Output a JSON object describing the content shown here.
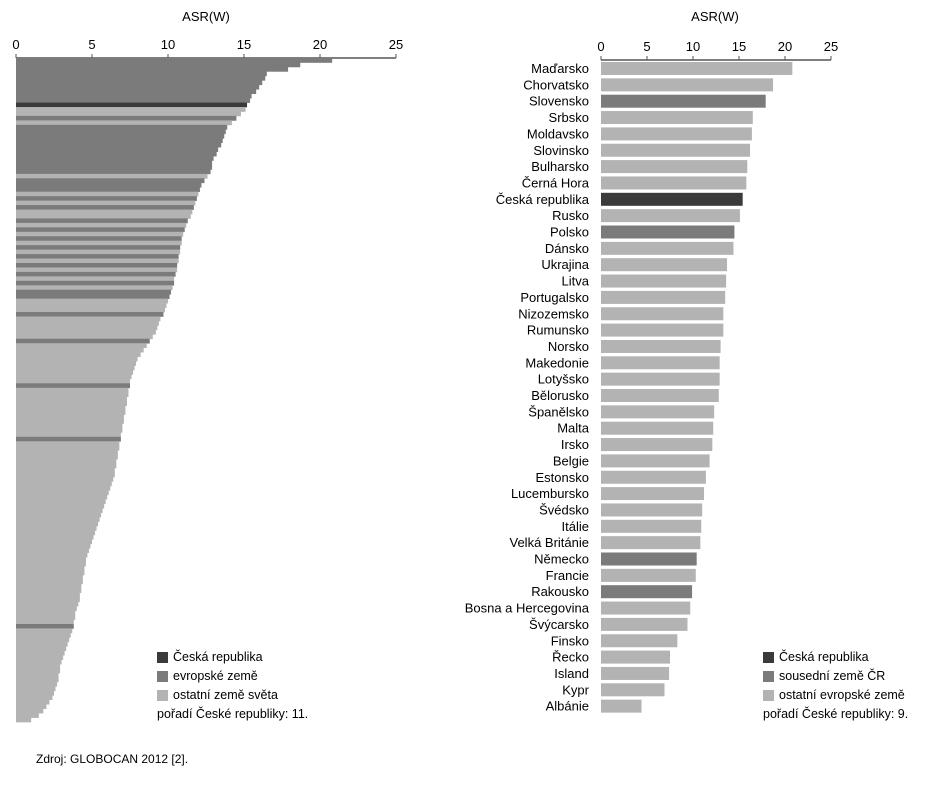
{
  "colors": {
    "cz": "#3a3a3a",
    "eu": "#7b7b7b",
    "other": "#b3b3b3",
    "axis": "#555555"
  },
  "chart_data": [
    {
      "type": "bar",
      "orientation": "horizontal",
      "xlabel": "ASR(W)",
      "xlim": [
        0,
        25
      ],
      "xticks": [
        0,
        5,
        10,
        15,
        20,
        25
      ],
      "values": [
        20.8,
        18.7,
        17.9,
        16.5,
        16.4,
        16.2,
        16.0,
        15.8,
        15.5,
        15.4,
        15.2,
        15.1,
        14.8,
        14.5,
        14.2,
        13.9,
        13.8,
        13.7,
        13.6,
        13.5,
        13.3,
        13.2,
        13.0,
        12.9,
        12.9,
        12.8,
        12.6,
        12.4,
        12.2,
        12.1,
        12.0,
        11.9,
        11.8,
        11.7,
        11.6,
        11.5,
        11.3,
        11.2,
        11.1,
        11.0,
        10.9,
        10.9,
        10.8,
        10.8,
        10.7,
        10.7,
        10.6,
        10.6,
        10.5,
        10.4,
        10.4,
        10.3,
        10.2,
        10.1,
        10.0,
        9.9,
        9.8,
        9.7,
        9.5,
        9.4,
        9.3,
        9.2,
        9.0,
        8.8,
        8.6,
        8.4,
        8.2,
        8.0,
        7.9,
        7.8,
        7.7,
        7.6,
        7.5,
        7.5,
        7.4,
        7.4,
        7.3,
        7.3,
        7.2,
        7.2,
        7.1,
        7.1,
        7.0,
        7.0,
        6.9,
        6.9,
        6.8,
        6.8,
        6.7,
        6.7,
        6.6,
        6.6,
        6.5,
        6.5,
        6.4,
        6.3,
        6.2,
        6.1,
        6.0,
        5.9,
        5.8,
        5.7,
        5.6,
        5.5,
        5.4,
        5.3,
        5.2,
        5.1,
        5.0,
        4.9,
        4.8,
        4.7,
        4.6,
        4.6,
        4.5,
        4.5,
        4.4,
        4.4,
        4.3,
        4.3,
        4.2,
        4.2,
        4.1,
        4.0,
        3.9,
        3.9,
        3.8,
        3.8,
        3.7,
        3.6,
        3.5,
        3.4,
        3.3,
        3.2,
        3.1,
        3.0,
        2.9,
        2.9,
        2.8,
        2.8,
        2.7,
        2.6,
        2.5,
        2.4,
        2.2,
        2.0,
        1.8,
        1.5,
        1.0
      ],
      "highlight": {
        "cz_rank": 11,
        "eu_ranks": [
          1,
          2,
          3,
          4,
          5,
          6,
          7,
          8,
          9,
          10,
          14,
          16,
          17,
          18,
          19,
          20,
          21,
          22,
          23,
          24,
          25,
          26,
          28,
          29,
          30,
          32,
          34,
          37,
          39,
          41,
          43,
          45,
          47,
          49,
          51,
          53,
          54,
          58,
          64,
          74,
          86,
          128
        ]
      },
      "legend": [
        {
          "label": "Česká republika",
          "color_key": "cz"
        },
        {
          "label": "evropské země",
          "color_key": "eu"
        },
        {
          "label": "ostatní země světa",
          "color_key": "other"
        }
      ],
      "note": "pořadí České republiky: 11.",
      "legend_position": "bottom-right"
    },
    {
      "type": "bar",
      "orientation": "horizontal",
      "xlabel": "ASR(W)",
      "xlim": [
        0,
        25
      ],
      "xticks": [
        0,
        5,
        10,
        15,
        20,
        25
      ],
      "categories": [
        "Maďarsko",
        "Chorvatsko",
        "Slovensko",
        "Srbsko",
        "Moldavsko",
        "Slovinsko",
        "Bulharsko",
        "Černá Hora",
        "Česká republika",
        "Rusko",
        "Polsko",
        "Dánsko",
        "Ukrajina",
        "Litva",
        "Portugalsko",
        "Nizozemsko",
        "Rumunsko",
        "Norsko",
        "Makedonie",
        "Lotyšsko",
        "Bělorusko",
        "Španělsko",
        "Malta",
        "Irsko",
        "Belgie",
        "Estonsko",
        "Lucembursko",
        "Švédsko",
        "Itálie",
        "Velká Británie",
        "Německo",
        "Francie",
        "Rakousko",
        "Bosna a Hercegovina",
        "Švýcarsko",
        "Finsko",
        "Řecko",
        "Island",
        "Kypr",
        "Albánie"
      ],
      "values": [
        20.8,
        18.7,
        17.9,
        16.5,
        16.4,
        16.2,
        15.9,
        15.8,
        15.4,
        15.1,
        14.5,
        14.4,
        13.7,
        13.6,
        13.5,
        13.3,
        13.3,
        13.0,
        12.9,
        12.9,
        12.8,
        12.3,
        12.2,
        12.1,
        11.8,
        11.4,
        11.2,
        11.0,
        10.9,
        10.8,
        10.4,
        10.3,
        9.9,
        9.7,
        9.4,
        8.3,
        7.5,
        7.4,
        6.9,
        4.4
      ],
      "groups": [
        "other",
        "other",
        "eu",
        "other",
        "other",
        "other",
        "other",
        "other",
        "cz",
        "other",
        "eu",
        "other",
        "other",
        "other",
        "other",
        "other",
        "other",
        "other",
        "other",
        "other",
        "other",
        "other",
        "other",
        "other",
        "other",
        "other",
        "other",
        "other",
        "other",
        "other",
        "eu",
        "other",
        "eu",
        "other",
        "other",
        "other",
        "other",
        "other",
        "other",
        "other"
      ],
      "legend": [
        {
          "label": "Česká republika",
          "color_key": "cz"
        },
        {
          "label": "sousední země ČR",
          "color_key": "eu"
        },
        {
          "label": "ostatní evropské země",
          "color_key": "other"
        }
      ],
      "note": "pořadí České republiky: 9.",
      "legend_position": "bottom-right"
    }
  ],
  "source": "Zdroj: GLOBOCAN 2012 [2]."
}
